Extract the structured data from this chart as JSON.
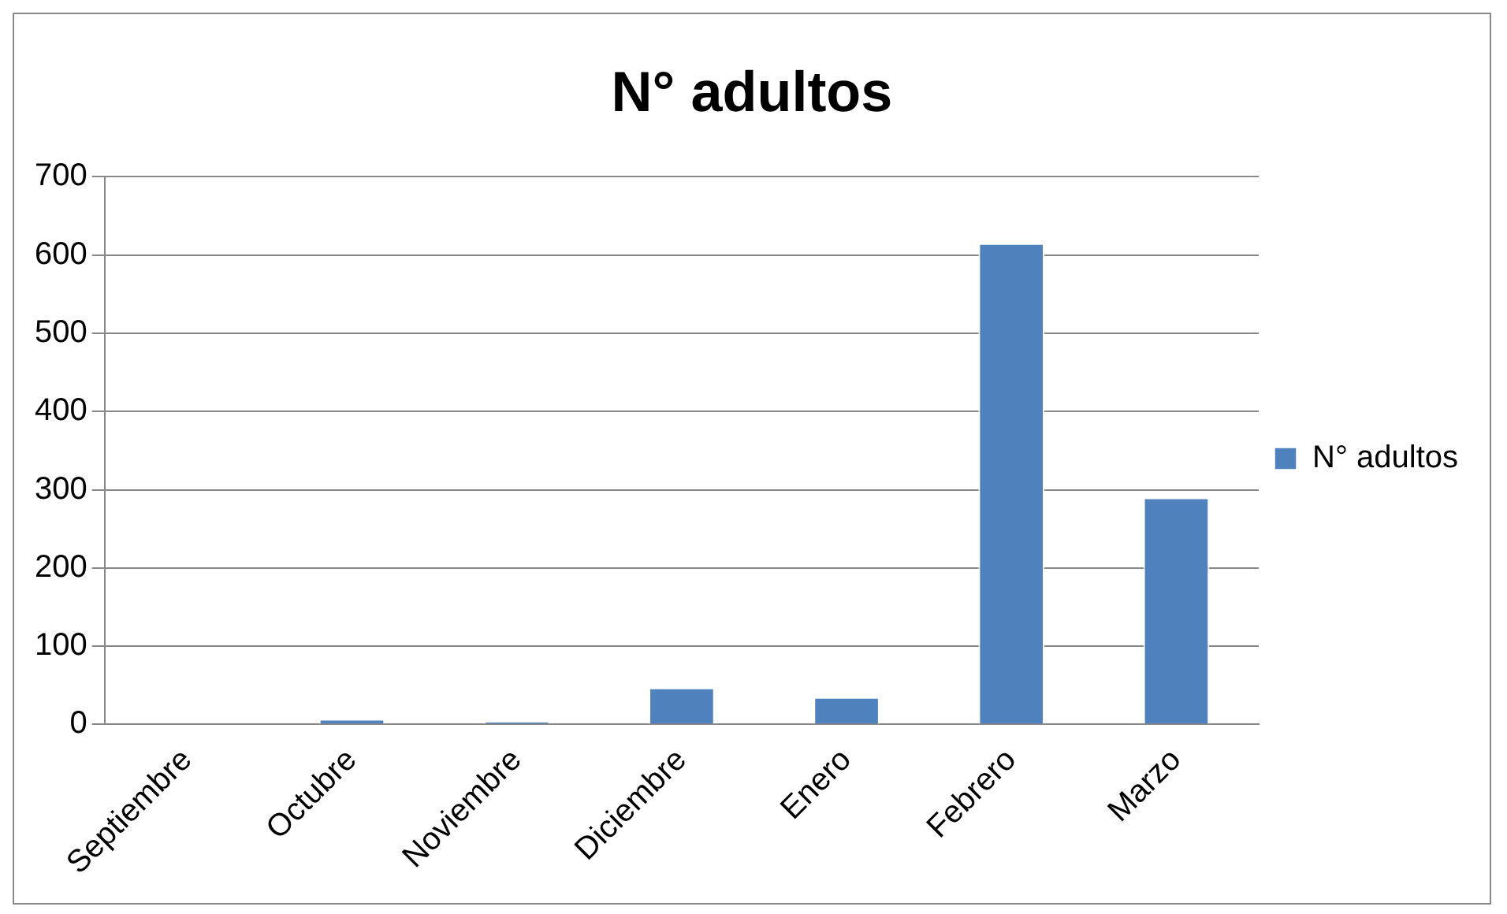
{
  "chart_data": {
    "type": "bar",
    "title": "N° adultos",
    "categories": [
      "Septiembre",
      "Octubre",
      "Noviembre",
      "Diciembre",
      "Enero",
      "Febrero",
      "Marzo"
    ],
    "series": [
      {
        "name": "N° adultos",
        "color": "#4f81bd",
        "values": [
          0,
          7,
          4,
          47,
          35,
          615,
          290
        ]
      }
    ],
    "ylim": [
      0,
      700
    ],
    "yticks": [
      0,
      100,
      200,
      300,
      400,
      500,
      600,
      700
    ],
    "grid": "y",
    "legend": "right"
  }
}
